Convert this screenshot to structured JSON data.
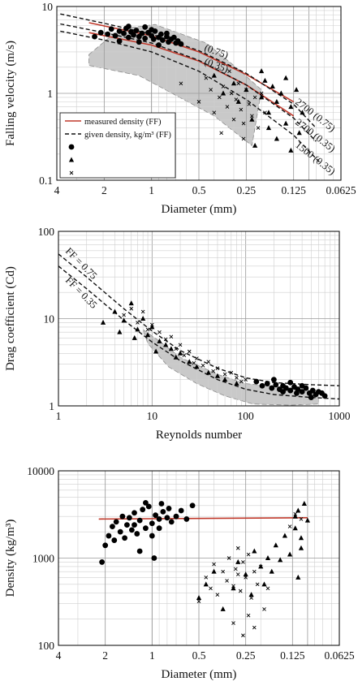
{
  "chart_data": [
    {
      "type": "scatter",
      "xlabel": "Diameter (mm)",
      "ylabel": "Falling velocity (m/s)",
      "x_scale": "log",
      "x_reversed": true,
      "y_scale": "log",
      "xlim": [
        4,
        0.0625
      ],
      "ylim": [
        0.1,
        10
      ],
      "x_ticks": [
        "4",
        "2",
        "1",
        "0.5",
        "0.25",
        "0.125",
        "0.0625"
      ],
      "y_ticks": [
        "0.1",
        "1",
        "10"
      ],
      "grid": true,
      "legend_position": "left-center",
      "legend": [
        {
          "label": "measured density (FF)",
          "style": "red-solid-line"
        },
        {
          "label": "given density, kg/m³ (FF)",
          "style": "black-dashed-line"
        },
        {
          "label": "",
          "style": "circle"
        },
        {
          "label": "",
          "style": "triangle"
        },
        {
          "label": "",
          "style": "cross"
        }
      ],
      "curve_labels": [
        "(0.75)",
        "(0.35)",
        "2700 (0.75)",
        "2700 (0.35)",
        "1500 (0.35)"
      ],
      "series": [
        {
          "name": "measured density (FF) (0.75)",
          "style": "red-solid-line",
          "x": [
            2.5,
            1,
            0.5,
            0.25,
            0.125
          ],
          "y": [
            6.5,
            4.6,
            3.0,
            1.65,
            0.8
          ]
        },
        {
          "name": "measured density (FF) (0.35)",
          "style": "red-solid-line",
          "x": [
            2.5,
            1,
            0.5,
            0.25,
            0.125
          ],
          "y": [
            5.0,
            3.6,
            2.35,
            1.25,
            0.55
          ]
        },
        {
          "name": "2700 (0.75)",
          "style": "black-dashed-line",
          "x": [
            3.8,
            2,
            1,
            0.5,
            0.25,
            0.125,
            0.09
          ],
          "y": [
            8.2,
            6.4,
            4.8,
            3.1,
            1.7,
            0.75,
            0.4
          ]
        },
        {
          "name": "2700 (0.35)",
          "style": "black-dashed-line",
          "x": [
            3.8,
            2,
            1,
            0.5,
            0.25,
            0.125,
            0.09
          ],
          "y": [
            6.3,
            5.0,
            3.8,
            2.4,
            1.25,
            0.52,
            0.28
          ]
        },
        {
          "name": "1500 (0.35)",
          "style": "black-dashed-line",
          "x": [
            3.8,
            2,
            1,
            0.5,
            0.25,
            0.125,
            0.085
          ],
          "y": [
            5.2,
            4.1,
            3.0,
            1.8,
            0.85,
            0.33,
            0.16
          ]
        },
        {
          "name": "circles",
          "style": "circle",
          "x": [
            2.3,
            2.1,
            1.9,
            1.8,
            1.7,
            1.6,
            1.5,
            1.45,
            1.4,
            1.35,
            1.3,
            1.25,
            1.2,
            1.15,
            1.1,
            1.05,
            1.0,
            0.97,
            0.95,
            0.9,
            0.87,
            0.85,
            0.8,
            0.78,
            0.75,
            0.72,
            0.7,
            0.68,
            0.65,
            1.2,
            1.1,
            1.0,
            0.9,
            0.8,
            1.6,
            1.4
          ],
          "y": [
            4.5,
            5.0,
            4.8,
            5.5,
            4.6,
            5.2,
            4.9,
            5.6,
            4.4,
            5.1,
            4.7,
            5.3,
            4.5,
            4.9,
            4.3,
            5.0,
            4.6,
            4.2,
            5.2,
            4.4,
            4.8,
            4.1,
            4.5,
            3.9,
            4.2,
            4.4,
            3.8,
            4.0,
            3.7,
            3.9,
            5.8,
            5.4,
            3.6,
            4.9,
            4.0,
            5.9
          ]
        },
        {
          "name": "triangles",
          "style": "triangle",
          "x": [
            0.4,
            0.35,
            0.3,
            0.28,
            0.25,
            0.23,
            0.2,
            0.19,
            0.18,
            0.17,
            0.16,
            0.15,
            0.14,
            0.13,
            0.12,
            0.115,
            0.11,
            0.22,
            0.2,
            0.18,
            0.16,
            0.14,
            0.13
          ],
          "y": [
            1.6,
            1.0,
            1.3,
            0.8,
            1.1,
            0.5,
            0.9,
            1.4,
            0.6,
            1.2,
            0.8,
            1.0,
            0.45,
            0.7,
            1.1,
            0.35,
            0.6,
            0.25,
            1.8,
            0.4,
            0.3,
            1.5,
            0.22
          ]
        },
        {
          "name": "crosses",
          "style": "cross",
          "x": [
            0.65,
            0.5,
            0.45,
            0.42,
            0.4,
            0.37,
            0.35,
            0.33,
            0.31,
            0.3,
            0.29,
            0.28,
            0.27,
            0.26,
            0.25,
            0.24,
            0.23,
            0.22,
            0.21,
            0.2,
            0.19,
            0.32,
            0.36,
            0.26
          ],
          "y": [
            1.3,
            0.8,
            1.5,
            1.1,
            0.6,
            0.9,
            1.2,
            0.7,
            1.0,
            0.5,
            0.85,
            1.3,
            0.65,
            0.45,
            1.1,
            0.75,
            0.55,
            0.9,
            0.4,
            1.0,
            0.6,
            1.8,
            0.35,
            0.3
          ]
        }
      ]
    },
    {
      "type": "scatter",
      "xlabel": "Reynolds number",
      "ylabel": "Drag coefficient (Cd)",
      "x_scale": "log",
      "y_scale": "log",
      "xlim": [
        1,
        1000
      ],
      "ylim": [
        1,
        100
      ],
      "x_ticks": [
        "1",
        "10",
        "100",
        "1000"
      ],
      "y_ticks": [
        "1",
        "10",
        "100"
      ],
      "grid": true,
      "curve_labels": [
        "FF = 0.75",
        "FF = 0.35"
      ],
      "series": [
        {
          "name": "FF = 0.75",
          "style": "black-dashed-line",
          "x": [
            1,
            2,
            5,
            10,
            20,
            50,
            100,
            200,
            500,
            1000
          ],
          "y": [
            55,
            30,
            13,
            7.2,
            4.3,
            2.7,
            2.1,
            1.85,
            1.75,
            1.7
          ]
        },
        {
          "name": "FF = 0.35",
          "style": "black-dashed-line",
          "x": [
            1,
            2,
            5,
            10,
            20,
            50,
            100,
            200,
            500,
            1000
          ],
          "y": [
            40,
            22,
            9.6,
            5.4,
            3.3,
            2.0,
            1.55,
            1.35,
            1.25,
            1.2
          ]
        },
        {
          "name": "circles",
          "style": "circle",
          "x": [
            130,
            150,
            170,
            190,
            210,
            230,
            250,
            270,
            300,
            330,
            360,
            400,
            440,
            480,
            520,
            560,
            600,
            650,
            700,
            200,
            300,
            400,
            250,
            350,
            500
          ],
          "y": [
            1.9,
            1.7,
            1.8,
            1.6,
            1.75,
            1.55,
            1.7,
            1.6,
            1.5,
            1.65,
            1.55,
            1.45,
            1.6,
            1.4,
            1.5,
            1.35,
            1.45,
            1.4,
            1.3,
            2.0,
            1.85,
            1.7,
            1.45,
            1.4,
            1.25
          ]
        },
        {
          "name": "triangles",
          "style": "triangle",
          "x": [
            3,
            4,
            5,
            6,
            7,
            8,
            9,
            10,
            12,
            14,
            16,
            18,
            20,
            25,
            30,
            40,
            50,
            60,
            80,
            4.5,
            6.5,
            11
          ],
          "y": [
            9,
            12,
            9.5,
            15,
            7.5,
            10,
            6.5,
            8,
            5.5,
            5.0,
            4.5,
            3.6,
            4.0,
            3.2,
            2.8,
            2.4,
            2.2,
            2.0,
            1.8,
            7,
            6,
            4.2
          ]
        },
        {
          "name": "crosses",
          "style": "cross",
          "x": [
            5,
            6,
            7,
            8,
            9,
            10,
            12,
            14,
            16,
            18,
            20,
            22,
            25,
            28,
            30,
            35,
            40,
            45,
            50,
            60,
            70,
            80,
            90,
            100
          ],
          "y": [
            11,
            13,
            9,
            12,
            7.5,
            8.5,
            7,
            5.8,
            6.2,
            4.5,
            5.0,
            3.8,
            4.2,
            3.1,
            3.5,
            2.9,
            3.2,
            2.5,
            2.7,
            2.3,
            2.4,
            2.1,
            1.9,
            2.0
          ]
        }
      ]
    },
    {
      "type": "scatter",
      "xlabel": "Diameter (mm)",
      "ylabel": "Density (kg/m³)",
      "x_scale": "log",
      "x_reversed": true,
      "y_scale": "log",
      "xlim": [
        4,
        0.0625
      ],
      "ylim": [
        100,
        10000
      ],
      "x_ticks": [
        "4",
        "2",
        "1",
        "0.5",
        "0.25",
        "0.125",
        "0.0625"
      ],
      "y_ticks": [
        "100",
        "1000",
        "10000"
      ],
      "grid": true,
      "series": [
        {
          "name": "measured density line",
          "style": "red-solid-line",
          "x": [
            2.2,
            0.1
          ],
          "y": [
            2800,
            2900
          ]
        },
        {
          "name": "circles",
          "style": "circle",
          "x": [
            2.1,
            2.0,
            1.9,
            1.8,
            1.75,
            1.7,
            1.6,
            1.55,
            1.5,
            1.45,
            1.4,
            1.35,
            1.3,
            1.25,
            1.2,
            1.15,
            1.1,
            1.05,
            1.0,
            0.97,
            0.95,
            0.9,
            0.87,
            0.85,
            0.8,
            0.78,
            0.75,
            0.7,
            0.65,
            0.6,
            0.55,
            1.2,
            1.0,
            0.9,
            1.1,
            1.3
          ],
          "y": [
            900,
            1400,
            1800,
            2300,
            1600,
            2600,
            2000,
            3000,
            1700,
            2400,
            2900,
            2100,
            3300,
            1900,
            2700,
            3600,
            2200,
            3900,
            2500,
            1000,
            3100,
            2800,
            4200,
            3400,
            2900,
            3700,
            2600,
            3000,
            3500,
            2800,
            4000,
            1200,
            1800,
            2200,
            4300,
            2400
          ]
        },
        {
          "name": "triangles",
          "style": "triangle",
          "x": [
            0.5,
            0.45,
            0.4,
            0.35,
            0.3,
            0.28,
            0.25,
            0.23,
            0.22,
            0.2,
            0.19,
            0.18,
            0.17,
            0.16,
            0.15,
            0.14,
            0.13,
            0.12,
            0.115,
            0.11,
            0.105,
            0.1,
            0.12,
            0.11,
            0.115
          ],
          "y": [
            350,
            500,
            700,
            260,
            450,
            900,
            650,
            380,
            1200,
            800,
            500,
            1000,
            700,
            1400,
            950,
            1800,
            1100,
            2200,
            3500,
            1300,
            4200,
            2700,
            3000,
            1700,
            600
          ]
        },
        {
          "name": "crosses",
          "style": "cross",
          "x": [
            0.5,
            0.45,
            0.42,
            0.4,
            0.38,
            0.35,
            0.33,
            0.32,
            0.3,
            0.29,
            0.28,
            0.27,
            0.26,
            0.25,
            0.24,
            0.23,
            0.22,
            0.21,
            0.2,
            0.19,
            0.18,
            0.3,
            0.26,
            0.24,
            0.22,
            0.28,
            0.11,
            0.12,
            0.13
          ],
          "y": [
            320,
            600,
            450,
            850,
            380,
            700,
            550,
            1000,
            480,
            750,
            1300,
            420,
            900,
            600,
            1100,
            350,
            700,
            500,
            800,
            260,
            450,
            180,
            130,
            220,
            160,
            650,
            2800,
            3200,
            2300
          ]
        }
      ]
    }
  ]
}
